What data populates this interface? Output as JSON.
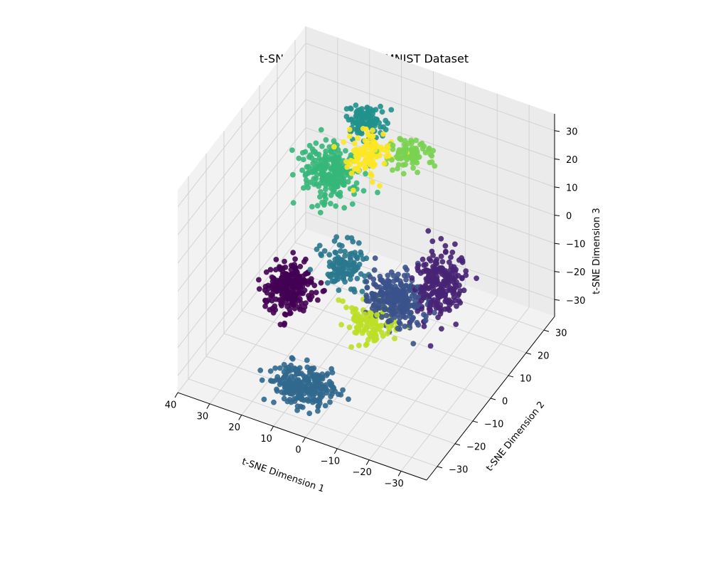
{
  "chart_data": {
    "type": "scatter",
    "title": "t-SNE Visualization of MNIST Dataset",
    "xlabel": "t-SNE Dimension 1",
    "ylabel": "t-SNE Dimension 2",
    "zlabel": "t-SNE Dimension 3",
    "xlim": [
      -38,
      40
    ],
    "ylim": [
      -36,
      36
    ],
    "zlim": [
      -36,
      36
    ],
    "xticks": [
      -30,
      -20,
      -10,
      0,
      10,
      20,
      30,
      40
    ],
    "yticks": [
      -30,
      -20,
      -10,
      0,
      10,
      20,
      30
    ],
    "zticks": [
      -30,
      -20,
      -10,
      0,
      10,
      20,
      30
    ],
    "grid": true,
    "colormap": "viridis",
    "clusters": [
      {
        "center": [
          -24,
          -4,
          2
        ],
        "spread": [
          6,
          7,
          9
        ],
        "color": "#482475",
        "count": 230
      },
      {
        "center": [
          4,
          8,
          28
        ],
        "spread": [
          6,
          6,
          4
        ],
        "color": "#fde725",
        "count": 120
      },
      {
        "center": [
          -6,
          12,
          28
        ],
        "spread": [
          6,
          5,
          3
        ],
        "color": "#7ad151",
        "count": 90
      },
      {
        "center": [
          12,
          20,
          26
        ],
        "spread": [
          5,
          5,
          3
        ],
        "color": "#21918c",
        "count": 110
      },
      {
        "center": [
          20,
          14,
          10
        ],
        "spread": [
          7,
          6,
          7
        ],
        "color": "#35b779",
        "count": 240
      },
      {
        "center": [
          4,
          -8,
          0
        ],
        "spread": [
          6,
          5,
          6
        ],
        "color": "#2a788e",
        "count": 120
      },
      {
        "center": [
          -8,
          -14,
          -10
        ],
        "spread": [
          6,
          5,
          5
        ],
        "color": "#bddf26",
        "count": 120
      },
      {
        "center": [
          -14,
          -10,
          -2
        ],
        "spread": [
          8,
          6,
          7
        ],
        "color": "#3b528b",
        "count": 260
      },
      {
        "center": [
          22,
          -6,
          -16
        ],
        "spread": [
          6,
          6,
          6
        ],
        "color": "#440154",
        "count": 240
      },
      {
        "center": [
          6,
          -26,
          -28
        ],
        "spread": [
          8,
          5,
          5
        ],
        "color": "#31688e",
        "count": 240
      }
    ]
  }
}
